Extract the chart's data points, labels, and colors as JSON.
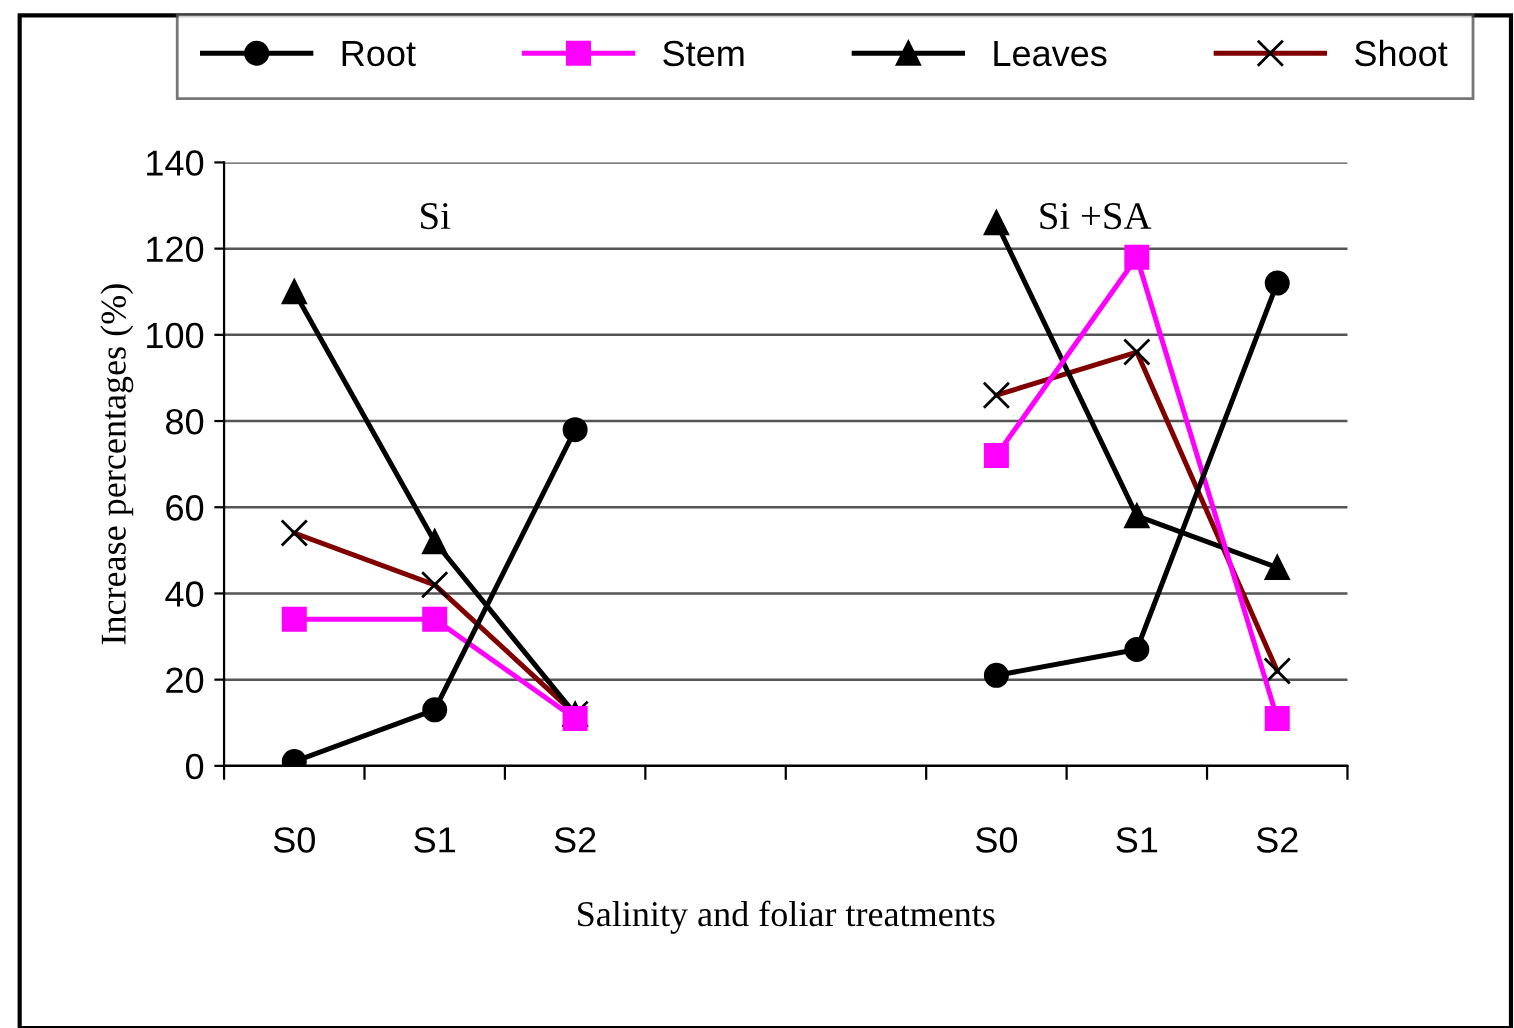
{
  "chart_data": {
    "type": "line",
    "categories": [
      "S0",
      "S1",
      "S2",
      null,
      null,
      "S0",
      "S1",
      "S2"
    ],
    "series": [
      {
        "name": "Root",
        "color": "#000000",
        "marker": "circle",
        "values": [
          1,
          13,
          78,
          null,
          null,
          21,
          27,
          112
        ]
      },
      {
        "name": "Stem",
        "color": "#ff00ff",
        "marker": "square",
        "values": [
          34,
          34,
          11,
          null,
          null,
          72,
          118,
          11
        ]
      },
      {
        "name": "Leaves",
        "color": "#000000",
        "marker": "triangle",
        "values": [
          110,
          52,
          12,
          null,
          null,
          126,
          58,
          46
        ]
      },
      {
        "name": "Shoot",
        "color": "#800000",
        "marker": "cross",
        "values": [
          54,
          42,
          12,
          null,
          null,
          86,
          96,
          22
        ]
      }
    ],
    "ylabel": "Increase percentages (%)",
    "xlabel": "Salinity and foliar treatments",
    "annotations": [
      "Si",
      "Si +SA"
    ],
    "ylim": [
      0,
      140
    ],
    "yticks": [
      0,
      20,
      40,
      60,
      80,
      100,
      120,
      140
    ],
    "grid": "y",
    "legend": "top"
  }
}
